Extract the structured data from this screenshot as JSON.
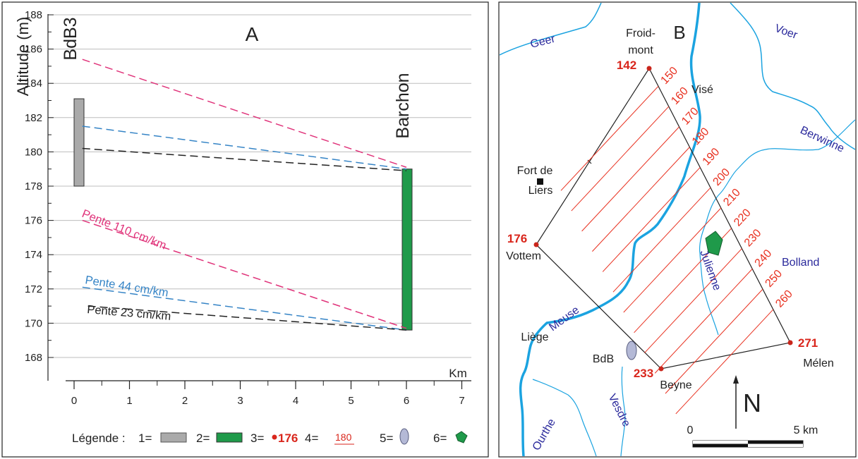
{
  "panel_a": {
    "label": "A",
    "ylabel": "Altitude (m)",
    "xunit": "Km",
    "left_site": "BdB3",
    "right_site": "Barchon",
    "slope_labels": [
      "Pente 110 cm/km",
      "Pente 44 cm/km",
      "Pente 23 cm/km"
    ],
    "legend_title": "Légende :",
    "legend_items": [
      {
        "num": "1=",
        "symbol": "gray-bar"
      },
      {
        "num": "2=",
        "symbol": "green-bar"
      },
      {
        "num": "3=",
        "symbol": "red-dot",
        "text": "176"
      },
      {
        "num": "4=",
        "symbol": "red-underline",
        "text": "180"
      },
      {
        "num": "5=",
        "symbol": "ellipse"
      },
      {
        "num": "6=",
        "symbol": "pentagon"
      }
    ]
  },
  "chart_data": {
    "type": "line",
    "xlabel": "Km",
    "ylabel": "Altitude (m)",
    "xlim": [
      0,
      7
    ],
    "ylim": [
      167,
      188
    ],
    "xticks": [
      0,
      1,
      2,
      3,
      4,
      5,
      6,
      7
    ],
    "yticks": [
      168,
      170,
      172,
      174,
      176,
      178,
      180,
      182,
      184,
      186,
      188
    ],
    "grid": "horizontal",
    "bars": [
      {
        "name": "BdB3",
        "x": 0,
        "ymin": 178.0,
        "ymax": 183.1,
        "color": "#aaaaaa"
      },
      {
        "name": "Barchon",
        "x": 6,
        "ymin": 169.6,
        "ymax": 179.0,
        "color": "#1f9a4a"
      }
    ],
    "series": [
      {
        "x": [
          0.15,
          6
        ],
        "y": [
          185.4,
          179.1
        ],
        "color": "#e0337a"
      },
      {
        "x": [
          0.15,
          6
        ],
        "y": [
          181.5,
          179.0
        ],
        "color": "#3584c6"
      },
      {
        "x": [
          0.15,
          6
        ],
        "y": [
          180.2,
          178.9
        ],
        "color": "#222222"
      },
      {
        "x": [
          0.15,
          6
        ],
        "y": [
          176.0,
          169.7
        ],
        "color": "#e0337a"
      },
      {
        "x": [
          0.15,
          6
        ],
        "y": [
          172.1,
          169.6
        ],
        "color": "#3584c6"
      },
      {
        "x": [
          0.25,
          6
        ],
        "y": [
          171.0,
          169.6
        ],
        "color": "#222222"
      }
    ]
  },
  "panel_b": {
    "label": "B",
    "north": "N",
    "scale_start": "0",
    "scale_end": "5 km",
    "places": {
      "froidmont": "Froid-\nmont",
      "vise": "Visé",
      "fort": "Fort de\nLiers",
      "vottem": "Vottem",
      "liege": "Liège",
      "bdb": "BdB",
      "beyne": "Beyne",
      "melen": "Mélen"
    },
    "rivers": {
      "geer": "Geer",
      "voer": "Voer",
      "berwinne": "Berwinne",
      "bolland": "Bolland",
      "julienne": "Julienne",
      "meuse": "Meuse",
      "vesdre": "Vesdre",
      "ourthe": "Ourthe"
    },
    "corner_altitudes": {
      "froidmont": "142",
      "vottem": "176",
      "beyne": "233",
      "melen": "271"
    },
    "contour_labels": [
      "150",
      "160",
      "170",
      "180",
      "190",
      "200",
      "210",
      "220",
      "230",
      "240",
      "250",
      "260"
    ],
    "colors": {
      "river": "#1ba3e0",
      "river_label": "#2b2a9c",
      "contour": "#e8301f",
      "altitude": "#d9261c"
    }
  }
}
